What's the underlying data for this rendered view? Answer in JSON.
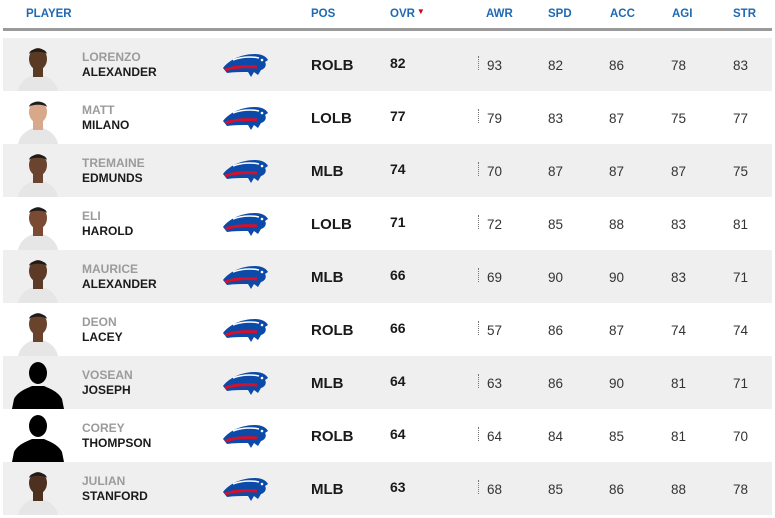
{
  "headers": {
    "player": "PLAYER",
    "pos": "POS",
    "ovr": "OVR",
    "awr": "AWR",
    "spd": "SPD",
    "acc": "ACC",
    "agi": "AGI",
    "str": "STR"
  },
  "sort": {
    "column": "OVR",
    "direction": "descending",
    "indicator_icon": "sort-down-arrow-icon",
    "indicator_color": "#d0021b"
  },
  "colors": {
    "header": "#1d69b3",
    "logo_blue": "#0b4aa8",
    "logo_red": "#d5102a",
    "row_alt": "#efefef"
  },
  "team_logo_icon": "bison-logo-icon",
  "players": [
    {
      "first": "LORENZO",
      "last": "ALEXANDER",
      "pos": "ROLB",
      "ovr": "82",
      "awr": "93",
      "spd": "82",
      "acc": "86",
      "agi": "78",
      "str": "83",
      "photo": "headshot",
      "skin": "#5a3a24"
    },
    {
      "first": "MATT",
      "last": "MILANO",
      "pos": "LOLB",
      "ovr": "77",
      "awr": "79",
      "spd": "83",
      "acc": "87",
      "agi": "75",
      "str": "77",
      "photo": "headshot",
      "skin": "#d7a98a"
    },
    {
      "first": "TREMAINE",
      "last": "EDMUNDS",
      "pos": "MLB",
      "ovr": "74",
      "awr": "70",
      "spd": "87",
      "acc": "87",
      "agi": "87",
      "str": "75",
      "photo": "headshot",
      "skin": "#6b4430"
    },
    {
      "first": "ELI",
      "last": "HAROLD",
      "pos": "LOLB",
      "ovr": "71",
      "awr": "72",
      "spd": "85",
      "acc": "88",
      "agi": "83",
      "str": "81",
      "photo": "headshot",
      "skin": "#7a4a32"
    },
    {
      "first": "MAURICE",
      "last": "ALEXANDER",
      "pos": "MLB",
      "ovr": "66",
      "awr": "69",
      "spd": "90",
      "acc": "90",
      "agi": "83",
      "str": "71",
      "photo": "headshot",
      "skin": "#5c3a26"
    },
    {
      "first": "DEON",
      "last": "LACEY",
      "pos": "ROLB",
      "ovr": "66",
      "awr": "57",
      "spd": "86",
      "acc": "87",
      "agi": "74",
      "str": "74",
      "photo": "headshot",
      "skin": "#6a432c"
    },
    {
      "first": "VOSEAN",
      "last": "JOSEPH",
      "pos": "MLB",
      "ovr": "64",
      "awr": "63",
      "spd": "86",
      "acc": "90",
      "agi": "81",
      "str": "71",
      "photo": "silhouette",
      "skin": "#000000"
    },
    {
      "first": "COREY",
      "last": "THOMPSON",
      "pos": "ROLB",
      "ovr": "64",
      "awr": "64",
      "spd": "84",
      "acc": "85",
      "agi": "81",
      "str": "70",
      "photo": "silhouette",
      "skin": "#000000"
    },
    {
      "first": "JULIAN",
      "last": "STANFORD",
      "pos": "MLB",
      "ovr": "63",
      "awr": "68",
      "spd": "85",
      "acc": "86",
      "agi": "88",
      "str": "78",
      "photo": "headshot",
      "skin": "#4e3020"
    }
  ]
}
